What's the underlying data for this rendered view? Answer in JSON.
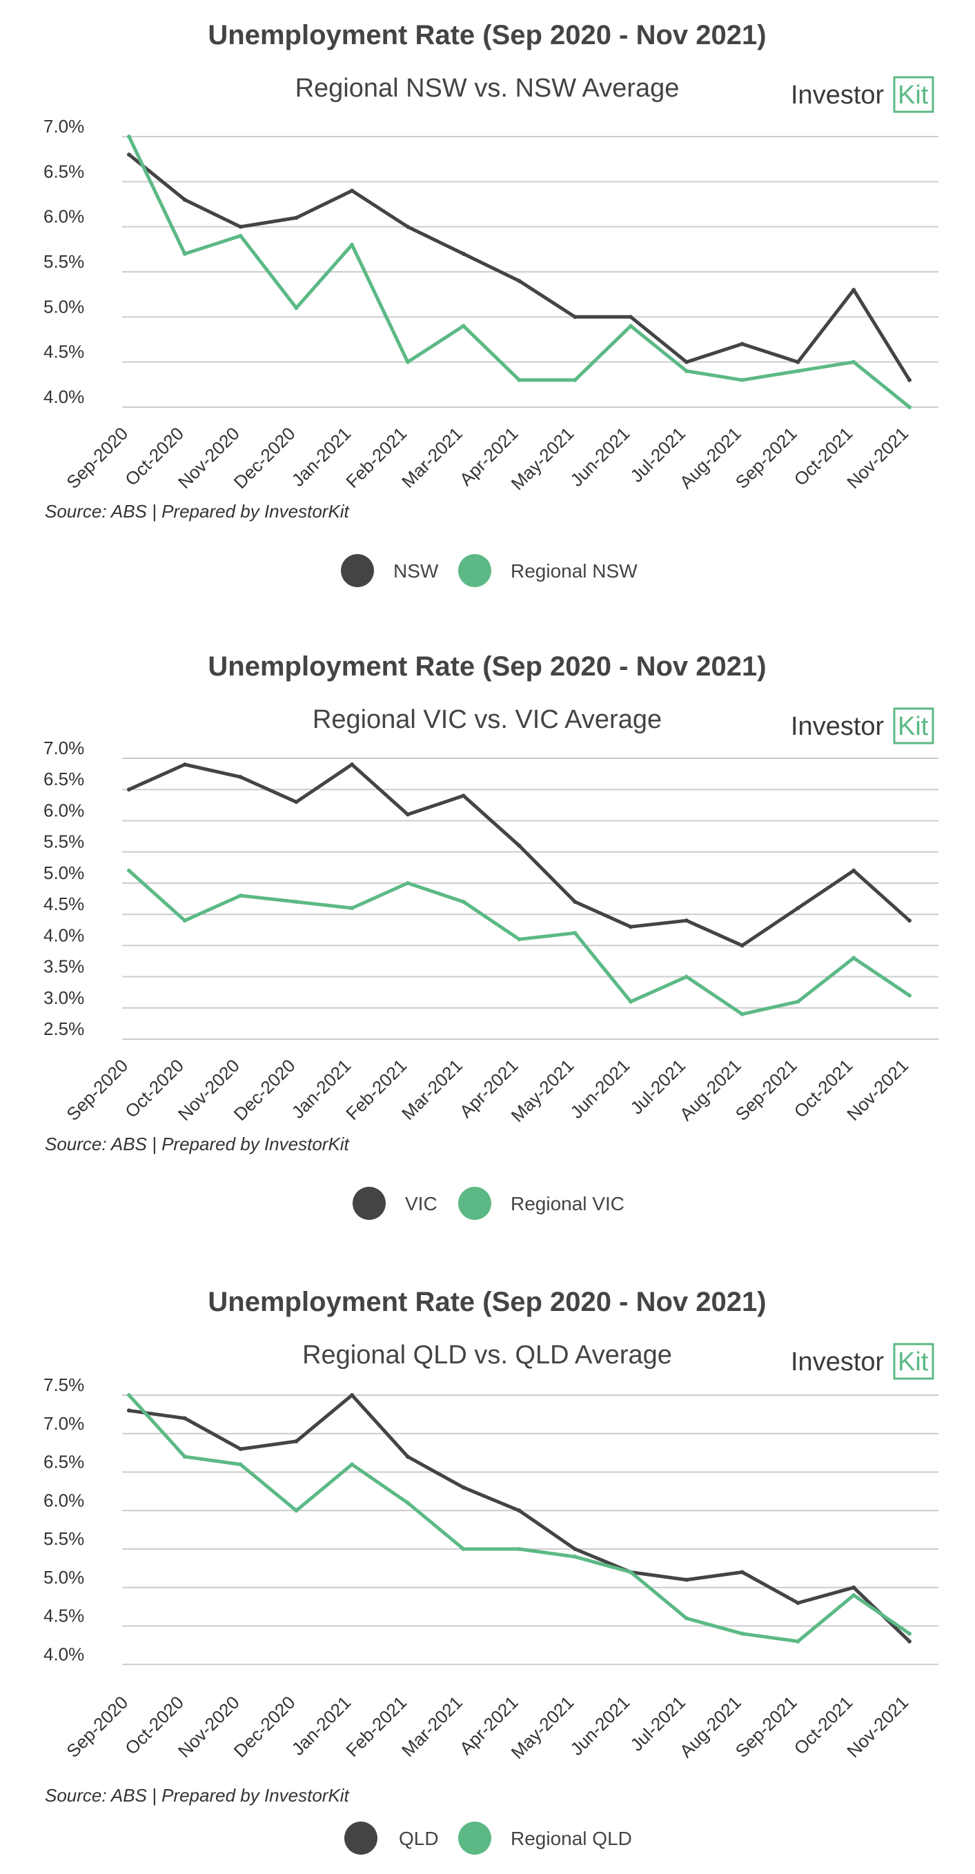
{
  "colors": {
    "primary": "#444444",
    "regional": "#5cb985",
    "grid": "#cccccc"
  },
  "logo": {
    "brand": "Investor",
    "mark": "Kit"
  },
  "chart_data": [
    {
      "type": "line",
      "title": "Unemployment Rate (Sep 2020 - Nov 2021)",
      "subtitle": "Regional NSW vs. NSW Average",
      "source": "Source: ABS | Prepared by InvestorKit",
      "categories": [
        "Sep-2020",
        "Oct-2020",
        "Nov-2020",
        "Dec-2020",
        "Jan-2021",
        "Feb-2021",
        "Mar-2021",
        "Apr-2021",
        "May-2021",
        "Jun-2021",
        "Jul-2021",
        "Aug-2021",
        "Sep-2021",
        "Oct-2021",
        "Nov-2021"
      ],
      "y_ticks": [
        "4.0%",
        "4.5%",
        "5.0%",
        "5.5%",
        "6.0%",
        "6.5%",
        "7.0%"
      ],
      "ylim": [
        4.0,
        7.0
      ],
      "grid": true,
      "legend_position": "bottom-center",
      "series": [
        {
          "name": "NSW",
          "color": "#444444",
          "values": [
            6.8,
            6.3,
            6.0,
            6.1,
            6.4,
            6.0,
            5.7,
            5.4,
            5.0,
            5.0,
            4.5,
            4.7,
            4.5,
            5.3,
            4.3
          ]
        },
        {
          "name": "Regional NSW",
          "color": "#5cb985",
          "values": [
            7.0,
            5.7,
            5.9,
            5.1,
            5.8,
            4.5,
            4.9,
            4.3,
            4.3,
            4.9,
            4.4,
            4.3,
            4.4,
            4.5,
            4.0
          ]
        }
      ]
    },
    {
      "type": "line",
      "title": "Unemployment Rate (Sep 2020 - Nov 2021)",
      "subtitle": "Regional VIC vs. VIC Average",
      "source": "Source: ABS | Prepared by InvestorKit",
      "categories": [
        "Sep-2020",
        "Oct-2020",
        "Nov-2020",
        "Dec-2020",
        "Jan-2021",
        "Feb-2021",
        "Mar-2021",
        "Apr-2021",
        "May-2021",
        "Jun-2021",
        "Jul-2021",
        "Aug-2021",
        "Sep-2021",
        "Oct-2021",
        "Nov-2021"
      ],
      "y_ticks": [
        "2.5%",
        "3.0%",
        "3.5%",
        "4.0%",
        "4.5%",
        "5.0%",
        "5.5%",
        "6.0%",
        "6.5%",
        "7.0%"
      ],
      "ylim": [
        2.5,
        7.0
      ],
      "grid": true,
      "legend_position": "bottom-center",
      "series": [
        {
          "name": "VIC",
          "color": "#444444",
          "values": [
            6.5,
            6.9,
            6.7,
            6.3,
            6.9,
            6.1,
            6.4,
            5.6,
            4.7,
            4.3,
            4.4,
            4.0,
            4.6,
            5.2,
            4.4
          ]
        },
        {
          "name": "Regional VIC",
          "color": "#5cb985",
          "values": [
            5.2,
            4.4,
            4.8,
            4.7,
            4.6,
            5.0,
            4.7,
            4.1,
            4.2,
            3.1,
            3.5,
            2.9,
            3.1,
            3.8,
            3.2
          ]
        }
      ]
    },
    {
      "type": "line",
      "title": "Unemployment Rate (Sep 2020 - Nov 2021)",
      "subtitle": "Regional QLD vs. QLD Average",
      "source": "Source: ABS | Prepared by InvestorKit",
      "categories": [
        "Sep-2020",
        "Oct-2020",
        "Nov-2020",
        "Dec-2020",
        "Jan-2021",
        "Feb-2021",
        "Mar-2021",
        "Apr-2021",
        "May-2021",
        "Jun-2021",
        "Jul-2021",
        "Aug-2021",
        "Sep-2021",
        "Oct-2021",
        "Nov-2021"
      ],
      "y_ticks": [
        "4.0%",
        "4.5%",
        "5.0%",
        "5.5%",
        "6.0%",
        "6.5%",
        "7.0%",
        "7.5%"
      ],
      "ylim": [
        3.85,
        7.5
      ],
      "grid": true,
      "legend_position": "bottom-center",
      "series": [
        {
          "name": "QLD",
          "color": "#444444",
          "values": [
            7.3,
            7.2,
            6.8,
            6.9,
            7.5,
            6.7,
            6.3,
            6.0,
            5.5,
            5.2,
            5.1,
            5.2,
            4.8,
            5.0,
            4.3
          ]
        },
        {
          "name": "Regional QLD",
          "color": "#5cb985",
          "values": [
            7.5,
            6.7,
            6.6,
            6.0,
            6.6,
            6.1,
            5.5,
            5.5,
            5.4,
            5.2,
            4.6,
            4.4,
            4.3,
            4.9,
            4.4
          ]
        }
      ]
    }
  ]
}
